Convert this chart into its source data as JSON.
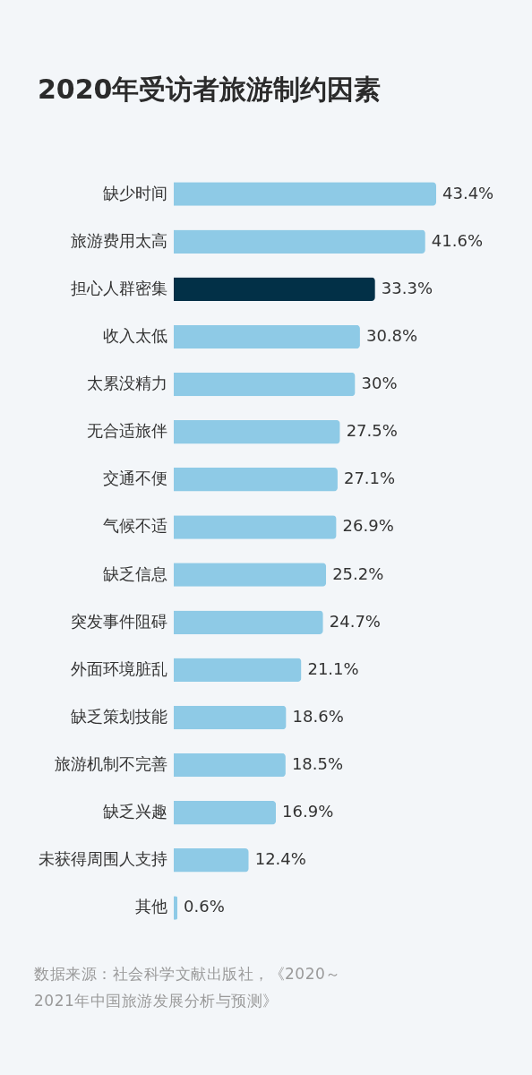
{
  "chart_data": {
    "type": "bar",
    "orientation": "horizontal",
    "title": "2020年受访者旅游制约因素",
    "categories": [
      "缺少时间",
      "旅游费用太高",
      "担心人群密集",
      "收入太低",
      "太累没精力",
      "无合适旅伴",
      "交通不便",
      "气候不适",
      "缺乏信息",
      "突发事件阻碍",
      "外面环境脏乱",
      "缺乏策划技能",
      "旅游机制不完善",
      "缺乏兴趣",
      "未获得周围人支持",
      "其他"
    ],
    "values": [
      43.4,
      41.6,
      33.3,
      30.8,
      30,
      27.5,
      27.1,
      26.9,
      25.2,
      24.7,
      21.1,
      18.6,
      18.5,
      16.9,
      12.4,
      0.6
    ],
    "value_labels": [
      "43.4%",
      "41.6%",
      "33.3%",
      "30.8%",
      "30%",
      "27.5%",
      "27.1%",
      "26.9%",
      "25.2%",
      "24.7%",
      "21.1%",
      "18.6%",
      "18.5%",
      "16.9%",
      "12.4%",
      "0.6%"
    ],
    "colors": [
      "#8ecae6",
      "#8ecae6",
      "#023047",
      "#8ecae6",
      "#8ecae6",
      "#8ecae6",
      "#8ecae6",
      "#8ecae6",
      "#8ecae6",
      "#8ecae6",
      "#8ecae6",
      "#8ecae6",
      "#8ecae6",
      "#8ecae6",
      "#8ecae6",
      "#8ecae6"
    ],
    "tick_labels": "y",
    "annotations": [
      "数据来源：社会科学文献出版社，《2020～2021年中国旅游发展分析与预测》"
    ]
  }
}
